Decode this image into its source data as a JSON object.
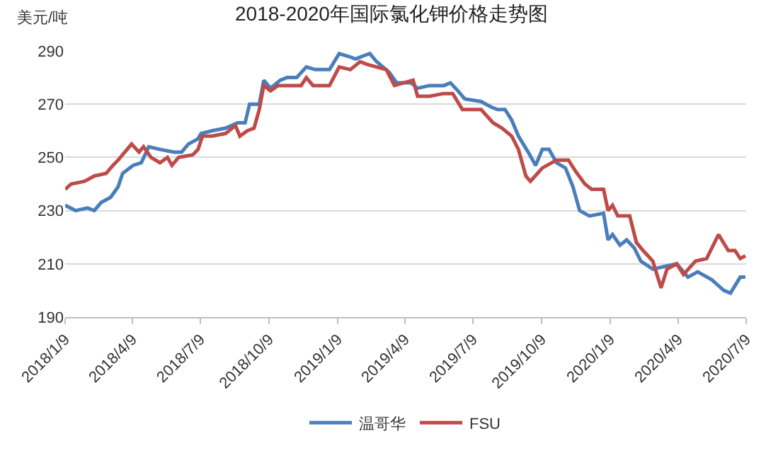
{
  "chart_data": {
    "type": "line",
    "title": "2018-2020年国际氯化钾价格走势图",
    "ylabel": "美元/吨",
    "xlim": [
      "2018-01-09",
      "2020-07-09"
    ],
    "xticks": [
      {
        "value": "2018-01-09",
        "label": "2018/1/9"
      },
      {
        "value": "2018-04-09",
        "label": "2018/4/9"
      },
      {
        "value": "2018-07-09",
        "label": "2018/7/9"
      },
      {
        "value": "2018-10-09",
        "label": "2018/10/9"
      },
      {
        "value": "2019-01-09",
        "label": "2019/1/9"
      },
      {
        "value": "2019-04-09",
        "label": "2019/4/9"
      },
      {
        "value": "2019-07-09",
        "label": "2019/7/9"
      },
      {
        "value": "2019-10-09",
        "label": "2019/10/9"
      },
      {
        "value": "2020-01-09",
        "label": "2020/1/9"
      },
      {
        "value": "2020-04-09",
        "label": "2020/4/9"
      },
      {
        "value": "2020-07-09",
        "label": "2020/7/9"
      }
    ],
    "ylim": [
      190,
      290
    ],
    "yticks": [
      190,
      210,
      230,
      250,
      270,
      290
    ],
    "grid": "y",
    "legend": "bottom",
    "marker": "none",
    "line_style": "solid",
    "series": [
      {
        "name": "温哥华",
        "color": "#4a7ebb",
        "x": [
          "2018-01-09",
          "2018-01-23",
          "2018-02-08",
          "2018-02-17",
          "2018-02-26",
          "2018-03-11",
          "2018-03-21",
          "2018-03-27",
          "2018-04-10",
          "2018-04-21",
          "2018-05-01",
          "2018-05-16",
          "2018-06-04",
          "2018-06-14",
          "2018-06-23",
          "2018-07-06",
          "2018-07-10",
          "2018-07-25",
          "2018-08-12",
          "2018-08-28",
          "2018-09-07",
          "2018-09-13",
          "2018-09-26",
          "2018-10-02",
          "2018-10-11",
          "2018-10-24",
          "2018-11-02",
          "2018-11-15",
          "2018-11-28",
          "2018-12-10",
          "2018-12-29",
          "2019-01-11",
          "2019-01-23",
          "2019-02-02",
          "2019-02-11",
          "2019-02-21",
          "2019-03-02",
          "2019-03-19",
          "2019-03-29",
          "2019-04-17",
          "2019-04-26",
          "2019-05-12",
          "2019-05-31",
          "2019-06-09",
          "2019-06-19",
          "2019-06-28",
          "2019-07-20",
          "2019-08-02",
          "2019-08-11",
          "2019-08-21",
          "2019-08-30",
          "2019-09-08",
          "2019-09-21",
          "2019-10-01",
          "2019-10-10",
          "2019-10-19",
          "2019-10-29",
          "2019-11-10",
          "2019-11-20",
          "2019-11-29",
          "2019-12-12",
          "2019-12-31",
          "2020-01-06",
          "2020-01-12",
          "2020-01-22",
          "2020-01-31",
          "2020-02-10",
          "2020-02-19",
          "2020-03-06",
          "2020-03-22",
          "2020-04-07",
          "2020-04-22",
          "2020-05-05",
          "2020-05-24",
          "2020-06-09",
          "2020-06-18",
          "2020-07-01",
          "2020-07-08"
        ],
        "values": [
          232,
          230,
          231,
          230,
          233,
          235,
          239,
          244,
          247,
          248,
          254,
          253,
          252,
          252,
          255,
          257,
          259,
          260,
          261,
          263,
          263,
          270,
          270,
          279,
          276,
          279,
          280,
          280,
          284,
          283,
          283,
          289,
          288,
          287,
          288,
          289,
          286,
          282,
          278,
          278,
          276,
          277,
          277,
          278,
          275,
          272,
          271,
          269,
          268,
          268,
          264,
          258,
          252,
          247,
          253,
          253,
          248,
          246,
          239,
          230,
          228,
          229,
          219,
          221,
          217,
          219,
          216,
          211,
          208,
          209,
          210,
          205,
          207,
          204,
          200,
          199,
          205,
          205
        ]
      },
      {
        "name": "FSU",
        "color": "#be4b48",
        "x": [
          "2018-01-09",
          "2018-01-17",
          "2018-02-04",
          "2018-02-17",
          "2018-03-05",
          "2018-03-14",
          "2018-03-21",
          "2018-03-30",
          "2018-04-08",
          "2018-04-18",
          "2018-04-24",
          "2018-05-04",
          "2018-05-16",
          "2018-05-26",
          "2018-06-01",
          "2018-06-10",
          "2018-06-29",
          "2018-07-06",
          "2018-07-12",
          "2018-07-25",
          "2018-08-12",
          "2018-08-25",
          "2018-08-31",
          "2018-09-10",
          "2018-09-19",
          "2018-09-26",
          "2018-10-02",
          "2018-10-11",
          "2018-10-21",
          "2018-11-02",
          "2018-11-21",
          "2018-11-28",
          "2018-12-07",
          "2018-12-29",
          "2019-01-11",
          "2019-01-26",
          "2019-02-08",
          "2019-02-17",
          "2019-03-02",
          "2019-03-15",
          "2019-03-26",
          "2019-04-07",
          "2019-04-20",
          "2019-04-26",
          "2019-05-12",
          "2019-05-31",
          "2019-06-12",
          "2019-06-25",
          "2019-07-20",
          "2019-08-05",
          "2019-08-17",
          "2019-08-30",
          "2019-09-08",
          "2019-09-18",
          "2019-09-24",
          "2019-10-10",
          "2019-10-29",
          "2019-11-14",
          "2019-11-23",
          "2019-12-06",
          "2019-12-15",
          "2019-12-31",
          "2020-01-06",
          "2020-01-12",
          "2020-01-19",
          "2020-02-04",
          "2020-02-13",
          "2020-02-22",
          "2020-03-06",
          "2020-03-17",
          "2020-03-25",
          "2020-04-07",
          "2020-04-16",
          "2020-05-02",
          "2020-05-17",
          "2020-06-02",
          "2020-06-15",
          "2020-06-24",
          "2020-07-01",
          "2020-07-08"
        ],
        "values": [
          238,
          240,
          241,
          243,
          244,
          247,
          249,
          252,
          255,
          252,
          254,
          250,
          248,
          250,
          247,
          250,
          251,
          253,
          258,
          258,
          259,
          262,
          258,
          260,
          261,
          268,
          277,
          275,
          277,
          277,
          277,
          280,
          277,
          277,
          284,
          283,
          286,
          285,
          284,
          283,
          277,
          278,
          279,
          273,
          273,
          274,
          274,
          268,
          268,
          263,
          261,
          258,
          253,
          243,
          241,
          246,
          249,
          249,
          245,
          240,
          238,
          238,
          230,
          232,
          228,
          228,
          218,
          215,
          211,
          201,
          208,
          210,
          206,
          211,
          212,
          221,
          215,
          215,
          212,
          213
        ]
      }
    ]
  }
}
